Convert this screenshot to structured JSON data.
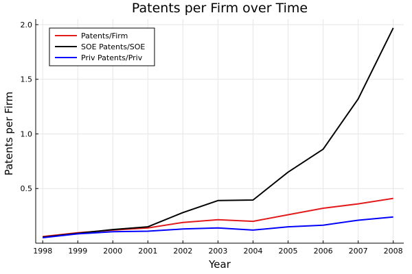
{
  "chart_data": {
    "type": "line",
    "title": "Patents per Firm over Time",
    "xlabel": "Year",
    "ylabel": "Patents per Firm",
    "x": [
      1998,
      1999,
      2000,
      2001,
      2002,
      2003,
      2004,
      2005,
      2006,
      2007,
      2008
    ],
    "xticks": [
      "1998",
      "1999",
      "2000",
      "2001",
      "2002",
      "2003",
      "2004",
      "2005",
      "2006",
      "2007",
      "2008"
    ],
    "yticks": [
      {
        "value": 0.5,
        "label": "0.5"
      },
      {
        "value": 1.0,
        "label": "1.0"
      },
      {
        "value": 1.5,
        "label": "1.5"
      },
      {
        "value": 2.0,
        "label": "2.0"
      }
    ],
    "xlim": [
      1997.8,
      2008.3
    ],
    "ylim": [
      0.0,
      2.05
    ],
    "grid": true,
    "legend_position": "top-left",
    "series": [
      {
        "name": "Patents/Firm",
        "color": "#e31a1c",
        "values": [
          0.06,
          0.095,
          0.12,
          0.14,
          0.19,
          0.215,
          0.2,
          0.26,
          0.32,
          0.36,
          0.41
        ]
      },
      {
        "name": "SOE Patents/SOE",
        "color": "#000000",
        "values": [
          0.055,
          0.09,
          0.125,
          0.15,
          0.28,
          0.39,
          0.395,
          0.65,
          0.86,
          1.32,
          1.97
        ]
      },
      {
        "name": "Priv Patents/Priv",
        "color": "#0000ff",
        "values": [
          0.05,
          0.085,
          0.105,
          0.11,
          0.13,
          0.14,
          0.12,
          0.15,
          0.165,
          0.21,
          0.24
        ]
      }
    ]
  }
}
